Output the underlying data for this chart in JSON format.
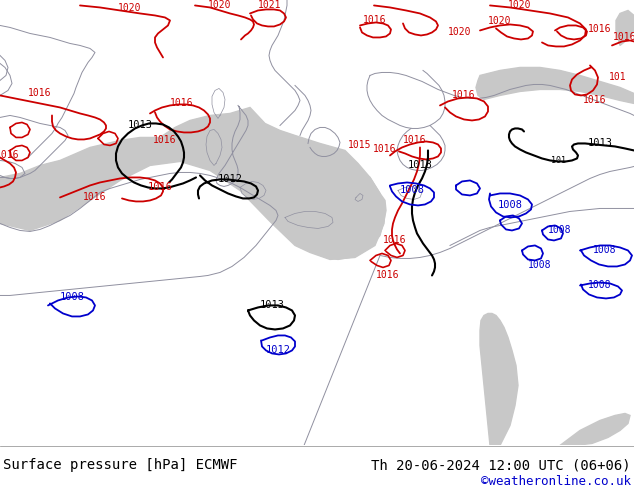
{
  "title_left": "Surface pressure [hPa] ECMWF",
  "title_right": "Th 20-06-2024 12:00 UTC (06+06)",
  "copyright": "©weatheronline.co.uk",
  "ocean_color": "#c8c8c8",
  "land_color": "#c8e0a0",
  "border_color": "#9090a0",
  "footer_bg": "#ffffff",
  "footer_text_color": "#000000",
  "copyright_color": "#0000cc",
  "red": "#cc0000",
  "blue": "#0000cc",
  "black": "#000000",
  "font_size_title": 10,
  "font_size_copyright": 9
}
